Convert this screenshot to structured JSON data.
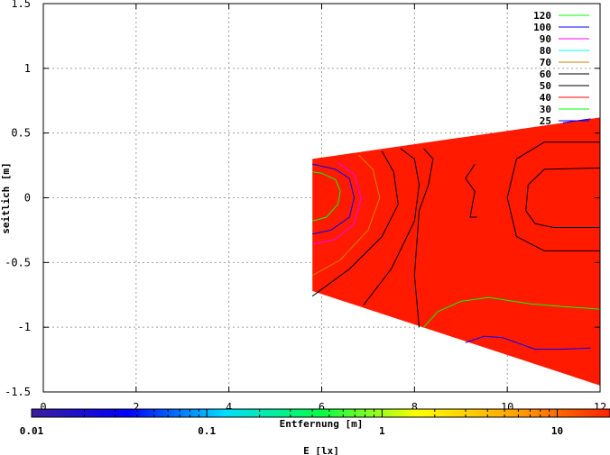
{
  "chart_data": {
    "type": "heatmap",
    "xlabel": "Entfernung [m]",
    "ylabel": "seitlich [m]",
    "colorbar_label": "E [lx]",
    "xlim": [
      0,
      12
    ],
    "ylim": [
      -1.5,
      1.5
    ],
    "x_ticks": [
      0,
      2,
      4,
      6,
      8,
      10,
      12
    ],
    "y_ticks": [
      1.5,
      1,
      0.5,
      0,
      -0.5,
      -1,
      -1.5
    ],
    "y_tick_labels": [
      "1.5",
      "1",
      "0.5",
      "0",
      "-0.5",
      "-1",
      "-1.5"
    ],
    "grid": true,
    "legend_position": "top-right",
    "colorbar": {
      "scale": "log",
      "range": [
        0.01,
        20
      ],
      "ticks": [
        0.01,
        0.1,
        1,
        10
      ],
      "tick_labels": [
        "0.01",
        "0.1",
        "1",
        "10"
      ],
      "colors": [
        "#3b1f9b",
        "#0000ff",
        "#00ddff",
        "#00ff44",
        "#ffff00",
        "#ffa500",
        "#ff2200"
      ]
    },
    "region": {
      "fill": "#ff1a00",
      "boundary": [
        [
          5.8,
          0.3
        ],
        [
          12,
          0.62
        ],
        [
          12,
          -1.45
        ],
        [
          5.8,
          -0.72
        ]
      ]
    },
    "series": [
      {
        "name": "120",
        "color": "#00ff00",
        "lines": []
      },
      {
        "name": "100",
        "color": "#0000ff",
        "lines": [
          [
            [
              5.8,
              -0.28
            ],
            [
              6.2,
              -0.25
            ],
            [
              6.6,
              -0.15
            ],
            [
              6.7,
              0
            ],
            [
              6.6,
              0.15
            ],
            [
              6.3,
              0.22
            ],
            [
              5.8,
              0.26
            ]
          ],
          [
            [
              9.1,
              -1.12
            ],
            [
              9.5,
              -1.07
            ],
            [
              9.9,
              -1.08
            ],
            [
              10.6,
              -1.17
            ],
            [
              11.2,
              -1.17
            ],
            [
              11.8,
              -1.16
            ]
          ],
          [
            [
              11.2,
              0.58
            ],
            [
              11.8,
              0.61
            ]
          ]
        ]
      },
      {
        "name": "90",
        "color": "#ff00ff",
        "lines": [
          [
            [
              5.8,
              -0.36
            ],
            [
              6.3,
              -0.32
            ],
            [
              6.7,
              -0.2
            ],
            [
              6.85,
              0
            ],
            [
              6.7,
              0.18
            ],
            [
              6.35,
              0.27
            ]
          ]
        ]
      },
      {
        "name": "80",
        "color": "#00ffff",
        "lines": []
      },
      {
        "name": "70",
        "color": "#d08000",
        "lines": [
          [
            [
              5.8,
              -0.6
            ],
            [
              6.4,
              -0.48
            ],
            [
              7.0,
              -0.25
            ],
            [
              7.25,
              0
            ],
            [
              7.1,
              0.22
            ],
            [
              6.8,
              0.33
            ]
          ]
        ]
      },
      {
        "name": "60",
        "color": "#000000",
        "lines": []
      },
      {
        "name": "50",
        "color": "#000000",
        "lines": [
          [
            [
              5.8,
              -0.76
            ],
            [
              6.6,
              -0.55
            ],
            [
              7.3,
              -0.3
            ],
            [
              7.65,
              -0.05
            ],
            [
              7.55,
              0.2
            ],
            [
              7.3,
              0.36
            ]
          ],
          [
            [
              6.9,
              -0.83
            ],
            [
              7.5,
              -0.55
            ],
            [
              8.0,
              -0.18
            ],
            [
              8.1,
              0.1
            ],
            [
              8.0,
              0.3
            ],
            [
              7.7,
              0.38
            ]
          ],
          [
            [
              8.2,
              0.38
            ],
            [
              8.4,
              0.3
            ],
            [
              8.3,
              0.1
            ],
            [
              8.1,
              -0.1
            ],
            [
              8.0,
              -0.6
            ],
            [
              8.1,
              -1.0
            ]
          ],
          [
            [
              9.3,
              0.26
            ],
            [
              9.1,
              0.15
            ],
            [
              9.3,
              0.05
            ],
            [
              9.2,
              -0.15
            ],
            [
              9.35,
              -0.15
            ]
          ],
          [
            [
              12,
              0.43
            ],
            [
              10.8,
              0.43
            ],
            [
              10.2,
              0.3
            ],
            [
              10.0,
              0
            ],
            [
              10.2,
              -0.3
            ],
            [
              10.8,
              -0.41
            ],
            [
              12,
              -0.41
            ]
          ],
          [
            [
              12,
              0.23
            ],
            [
              10.8,
              0.22
            ],
            [
              10.45,
              0.1
            ],
            [
              10.4,
              -0.1
            ],
            [
              10.6,
              -0.2
            ],
            [
              11.0,
              -0.23
            ],
            [
              12,
              -0.23
            ]
          ]
        ]
      },
      {
        "name": "40",
        "color": "#ff0000",
        "lines": []
      },
      {
        "name": "30",
        "color": "#00ff00",
        "lines": [
          [
            [
              5.8,
              -0.18
            ],
            [
              6.1,
              -0.15
            ],
            [
              6.35,
              -0.05
            ],
            [
              6.4,
              0.05
            ],
            [
              6.3,
              0.14
            ],
            [
              6.0,
              0.19
            ],
            [
              5.8,
              0.2
            ]
          ],
          [
            [
              8.2,
              -1.0
            ],
            [
              8.5,
              -0.88
            ],
            [
              9.0,
              -0.8
            ],
            [
              9.6,
              -0.77
            ],
            [
              10.5,
              -0.82
            ],
            [
              11.2,
              -0.84
            ],
            [
              12,
              -0.86
            ]
          ]
        ]
      },
      {
        "name": "25",
        "color": "#0000ff",
        "lines": []
      }
    ]
  }
}
